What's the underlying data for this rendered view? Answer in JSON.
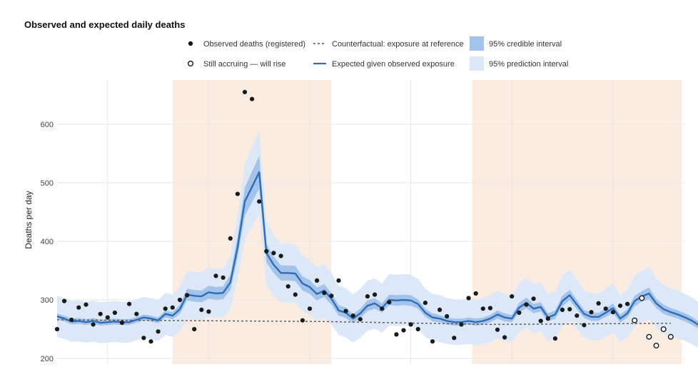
{
  "chart_data": {
    "type": "line",
    "title": "Observed and expected daily deaths",
    "xlabel": "",
    "ylabel": "Deaths per day",
    "xlim": [
      0,
      87
    ],
    "ylim": [
      200,
      665
    ],
    "y_ticks": [
      200,
      300,
      400,
      500,
      600
    ],
    "grid": true,
    "legend_position": "top",
    "legend": {
      "observed": "Observed deaths (registered)",
      "accruing": "Still accruing — will rise",
      "counterfactual": "Counterfactual: exposure at reference",
      "expected": "Expected given observed exposure",
      "credible": "95% credible interval",
      "prediction": "95% prediction interval"
    },
    "colors": {
      "expected": "#2f6eb5",
      "credible_band": "#a4c3eb",
      "prediction_band": "#dce8f7",
      "counterfactual": "#555555",
      "observed": "#1a1a1a",
      "shade": "#fbece2",
      "grid": "#e6e6e6"
    },
    "shaded_periods": [
      [
        16,
        38
      ],
      [
        57.5,
        86.5
      ]
    ],
    "counterfactual_line": [
      [
        0,
        266
      ],
      [
        37,
        263
      ],
      [
        60,
        258
      ],
      [
        85,
        260
      ]
    ],
    "expected": [
      272,
      268,
      263,
      264,
      262,
      264,
      261,
      262,
      263,
      262,
      262,
      266,
      270,
      268,
      265,
      276,
      273,
      284,
      309,
      307,
      306,
      313,
      311,
      312,
      330,
      390,
      468,
      493,
      518,
      380,
      360,
      346,
      346,
      345,
      328,
      322,
      310,
      316,
      302,
      282,
      278,
      268,
      277,
      290,
      294,
      286,
      300,
      299,
      300,
      299,
      293,
      278,
      270,
      268,
      264,
      262,
      262,
      264,
      262,
      264,
      268,
      275,
      270,
      268,
      287,
      295,
      285,
      288,
      270,
      275,
      298,
      308,
      292,
      276,
      271,
      271,
      278,
      286,
      268,
      277,
      298,
      306,
      311,
      294,
      284,
      279,
      275,
      270,
      264,
      256,
      252,
      249,
      256
    ],
    "credible_halfwidth": [
      5,
      5,
      5,
      5,
      5,
      5,
      5,
      5,
      5,
      5,
      5,
      5,
      5,
      5,
      5,
      6,
      6,
      8,
      10,
      10,
      10,
      11,
      11,
      11,
      13,
      18,
      24,
      26,
      28,
      16,
      14,
      13,
      13,
      13,
      12,
      12,
      11,
      11,
      10,
      9,
      9,
      8,
      8,
      9,
      9,
      8,
      9,
      9,
      9,
      9,
      8,
      7,
      7,
      6,
      6,
      6,
      6,
      6,
      6,
      6,
      6,
      7,
      7,
      6,
      8,
      9,
      8,
      8,
      7,
      7,
      9,
      9,
      8,
      7,
      7,
      7,
      7,
      8,
      7,
      7,
      9,
      9,
      10,
      8,
      8,
      7,
      7,
      7,
      7,
      6,
      6,
      6,
      7
    ],
    "prediction_halfwidth": [
      35,
      35,
      35,
      35,
      35,
      35,
      35,
      35,
      35,
      35,
      35,
      35,
      35,
      35,
      35,
      36,
      36,
      38,
      41,
      41,
      41,
      42,
      42,
      42,
      45,
      55,
      65,
      68,
      72,
      55,
      52,
      50,
      50,
      50,
      48,
      47,
      46,
      46,
      44,
      42,
      42,
      41,
      42,
      43,
      43,
      42,
      44,
      44,
      44,
      44,
      43,
      41,
      40,
      40,
      39,
      39,
      39,
      39,
      39,
      39,
      40,
      41,
      40,
      40,
      42,
      43,
      42,
      42,
      40,
      40,
      43,
      44,
      42,
      40,
      40,
      40,
      41,
      42,
      40,
      41,
      43,
      44,
      45,
      43,
      42,
      41,
      41,
      40,
      40,
      39,
      38,
      38,
      39
    ],
    "observed_points": [
      [
        0,
        250
      ],
      [
        1,
        298
      ],
      [
        2,
        266
      ],
      [
        3,
        287
      ],
      [
        4,
        292
      ],
      [
        5,
        258
      ],
      [
        6,
        276
      ],
      [
        7,
        270
      ],
      [
        8,
        278
      ],
      [
        9,
        261
      ],
      [
        10,
        293
      ],
      [
        11,
        276
      ],
      [
        12,
        235
      ],
      [
        13,
        229
      ],
      [
        14,
        246
      ],
      [
        15,
        285
      ],
      [
        16,
        287
      ],
      [
        17,
        300
      ],
      [
        18,
        308
      ],
      [
        19,
        250
      ],
      [
        20,
        283
      ],
      [
        21,
        280
      ],
      [
        22,
        341
      ],
      [
        23,
        338
      ],
      [
        24,
        405
      ],
      [
        25,
        481
      ],
      [
        26,
        655
      ],
      [
        27,
        643
      ],
      [
        28,
        468
      ],
      [
        29,
        383
      ],
      [
        30,
        380
      ],
      [
        31,
        375
      ],
      [
        32,
        323
      ],
      [
        33,
        309
      ],
      [
        34,
        265
      ],
      [
        35,
        285
      ],
      [
        36,
        333
      ],
      [
        37,
        312
      ],
      [
        38,
        307
      ],
      [
        39,
        333
      ],
      [
        40,
        281
      ],
      [
        41,
        273
      ],
      [
        42,
        267
      ],
      [
        43,
        306
      ],
      [
        44,
        309
      ],
      [
        45,
        285
      ],
      [
        46,
        296
      ],
      [
        47,
        241
      ],
      [
        48,
        248
      ],
      [
        49,
        258
      ],
      [
        50,
        250
      ],
      [
        51,
        295
      ],
      [
        52,
        229
      ],
      [
        53,
        283
      ],
      [
        54,
        272
      ],
      [
        55,
        235
      ],
      [
        56,
        258
      ],
      [
        57,
        303
      ],
      [
        58,
        311
      ],
      [
        59,
        285
      ],
      [
        60,
        286
      ],
      [
        61,
        249
      ],
      [
        62,
        236
      ],
      [
        63,
        306
      ],
      [
        64,
        278
      ],
      [
        65,
        292
      ],
      [
        66,
        302
      ],
      [
        67,
        264
      ],
      [
        68,
        268
      ],
      [
        69,
        234
      ],
      [
        70,
        283
      ],
      [
        71,
        284
      ],
      [
        72,
        273
      ],
      [
        73,
        257
      ],
      [
        74,
        279
      ],
      [
        75,
        294
      ],
      [
        76,
        285
      ],
      [
        77,
        279
      ],
      [
        78,
        290
      ],
      [
        79,
        293
      ]
    ],
    "accruing_points": [
      [
        80,
        265
      ],
      [
        81,
        303
      ],
      [
        82,
        237
      ],
      [
        83,
        222
      ],
      [
        84,
        250
      ],
      [
        85,
        237
      ]
    ]
  }
}
